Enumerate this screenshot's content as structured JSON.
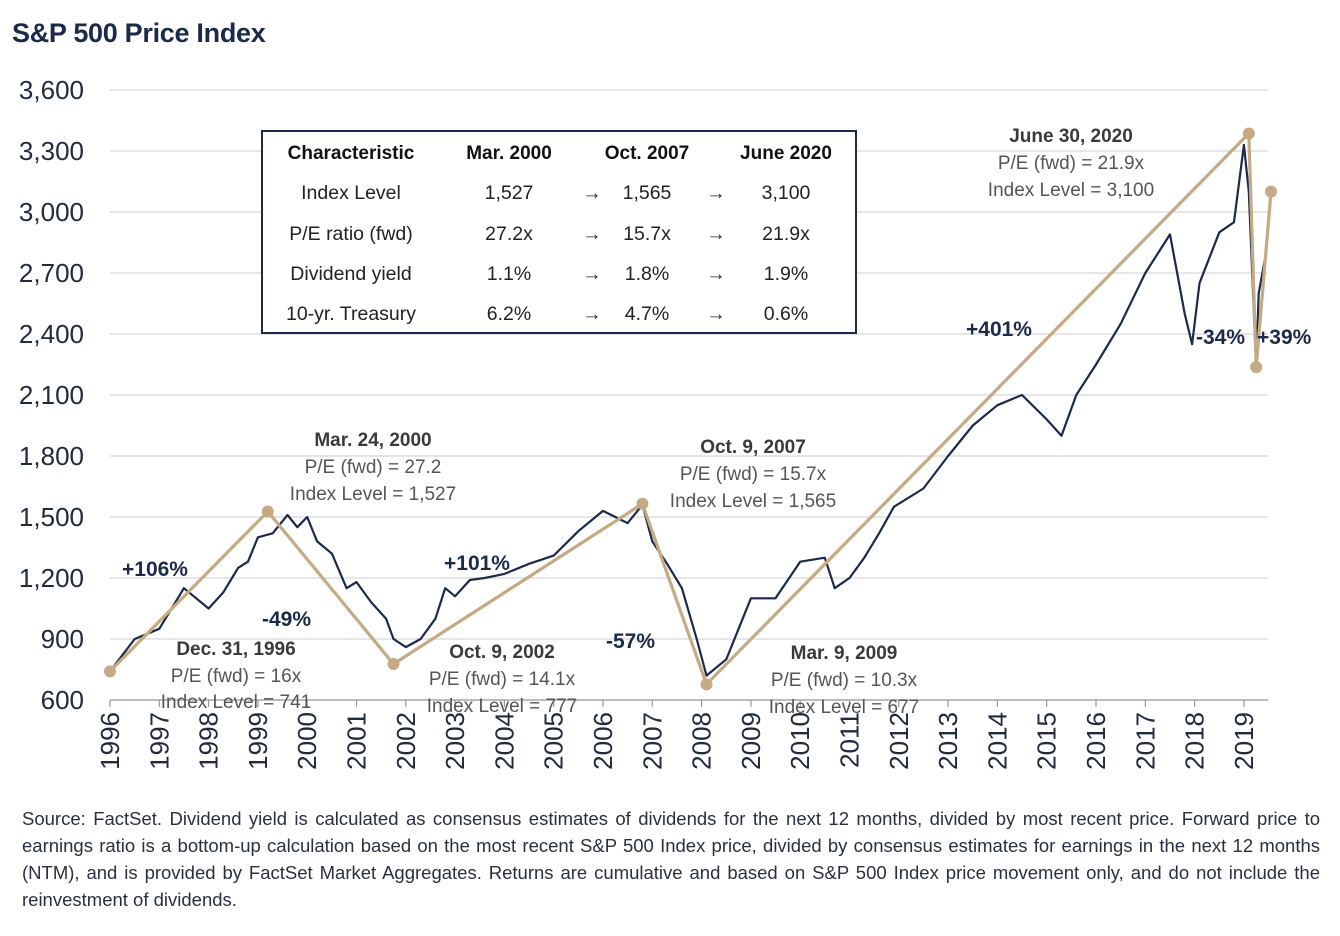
{
  "chart_data": {
    "type": "line",
    "title": "S&P 500 Price Index",
    "xlabel": "",
    "ylabel": "",
    "ylim": [
      600,
      3600
    ],
    "yticks": [
      "600",
      "900",
      "1,200",
      "1,500",
      "1,800",
      "2,100",
      "2,400",
      "2,700",
      "3,000",
      "3,300",
      "3,600"
    ],
    "ytick_values": [
      600,
      900,
      1200,
      1500,
      1800,
      2100,
      2400,
      2700,
      3000,
      3300,
      3600
    ],
    "xticks": [
      "1996",
      "1997",
      "1998",
      "1999",
      "2000",
      "2001",
      "2002",
      "2003",
      "2004",
      "2005",
      "2006",
      "2007",
      "2008",
      "2009",
      "2010",
      "2011",
      "2012",
      "2013",
      "2014",
      "2015",
      "2016",
      "2017",
      "2018",
      "2019"
    ],
    "grid": "horizontal",
    "colors": {
      "index_line": "#1b2a4a",
      "trend_line": "#c4ab84",
      "marker": "#c4ab84"
    },
    "series": [
      {
        "values_x": [
          1996.0,
          1996.5,
          1997.0,
          1997.5,
          1998.0,
          1998.3,
          1998.6,
          1998.8,
          1999.0,
          1999.3,
          1999.6,
          1999.8,
          2000.0,
          2000.2,
          2000.5,
          2000.8,
          2001.0,
          2001.3,
          2001.6,
          2001.75,
          2002.0,
          2002.3,
          2002.6,
          2002.8,
          2003.0,
          2003.3,
          2003.6,
          2004.0,
          2004.5,
          2005.0,
          2005.5,
          2006.0,
          2006.5,
          2006.8,
          2007.0,
          2007.3,
          2007.6,
          2007.9,
          2008.1,
          2008.5,
          2009.0,
          2009.5,
          2010.0,
          2010.5,
          2010.7,
          2011.0,
          2011.3,
          2011.6,
          2011.9,
          2012.5,
          2013.0,
          2013.5,
          2014.0,
          2014.5,
          2015.0,
          2015.3,
          2015.6,
          2016.0,
          2016.5,
          2017.0,
          2017.5,
          2017.8,
          2017.95,
          2018.1,
          2018.5,
          2018.8,
          2019.0,
          2019.1,
          2019.25,
          2019.3,
          2019.45,
          2019.55
        ],
        "values_y": [
          741,
          900,
          950,
          1150,
          1050,
          1130,
          1250,
          1280,
          1400,
          1420,
          1510,
          1450,
          1500,
          1380,
          1320,
          1150,
          1180,
          1080,
          1000,
          900,
          860,
          900,
          1000,
          1150,
          1110,
          1190,
          1200,
          1220,
          1270,
          1310,
          1430,
          1530,
          1470,
          1560,
          1380,
          1270,
          1150,
          900,
          720,
          800,
          1100,
          1100,
          1280,
          1300,
          1150,
          1200,
          1300,
          1420,
          1550,
          1640,
          1800,
          1950,
          2050,
          2100,
          1980,
          1900,
          2100,
          2250,
          2450,
          2700,
          2890,
          2500,
          2350,
          2650,
          2900,
          2950,
          3330,
          3100,
          2240,
          2600,
          2800,
          3100
        ]
      }
    ],
    "trend_points": {
      "x": [
        1996.0,
        1999.2,
        2001.75,
        2006.8,
        2008.1,
        2019.1,
        2019.25,
        2019.55
      ],
      "y": [
        741,
        1527,
        777,
        1565,
        677,
        3386,
        2237,
        3100
      ]
    },
    "returns": [
      "+106%",
      "-49%",
      "+101%",
      "-57%",
      "+401%",
      "-34%",
      "+39%"
    ],
    "annotations": [
      {
        "title": "Dec. 31, 1996",
        "pe": "P/E (fwd)  = 16x",
        "level": "Index Level = 741"
      },
      {
        "title": "Mar. 24, 2000",
        "pe": "P/E (fwd)  = 27.2",
        "level": "Index Level = 1,527"
      },
      {
        "title": "Oct. 9, 2002",
        "pe": "P/E (fwd)  = 14.1x",
        "level": "Index Level = 777"
      },
      {
        "title": "Oct. 9, 2007",
        "pe": "P/E (fwd)  = 15.7x",
        "level": "Index Level = 1,565"
      },
      {
        "title": "Mar. 9, 2009",
        "pe": "P/E (fwd)  = 10.3x",
        "level": "Index Level = 677"
      },
      {
        "title": "June 30, 2020",
        "pe": "P/E (fwd)  = 21.9x",
        "level": "Index Level = 3,100"
      }
    ],
    "table": {
      "headers": [
        "Characteristic",
        "Mar. 2000",
        "Oct. 2007",
        "June 2020"
      ],
      "rows": [
        [
          "Index Level",
          "1,527",
          "1,565",
          "3,100"
        ],
        [
          "P/E ratio (fwd)",
          "27.2x",
          "15.7x",
          "21.9x"
        ],
        [
          "Dividend yield",
          "1.1%",
          "1.8%",
          "1.9%"
        ],
        [
          "10-yr. Treasury",
          "6.2%",
          "4.7%",
          "0.6%"
        ]
      ],
      "arrow": "→"
    }
  },
  "footnote": "Source: FactSet. Dividend yield is calculated as consensus estimates of dividends for the next 12 months, divided by most recent price. Forward price to earnings ratio is a bottom-up calculation based on the most recent S&P 500 Index price, divided by consensus estimates for earnings in the next 12 months (NTM), and is provided by FactSet Market Aggregates. Returns are cumulative and based on S&P 500 Index price movement only, and do not include the reinvestment of dividends."
}
